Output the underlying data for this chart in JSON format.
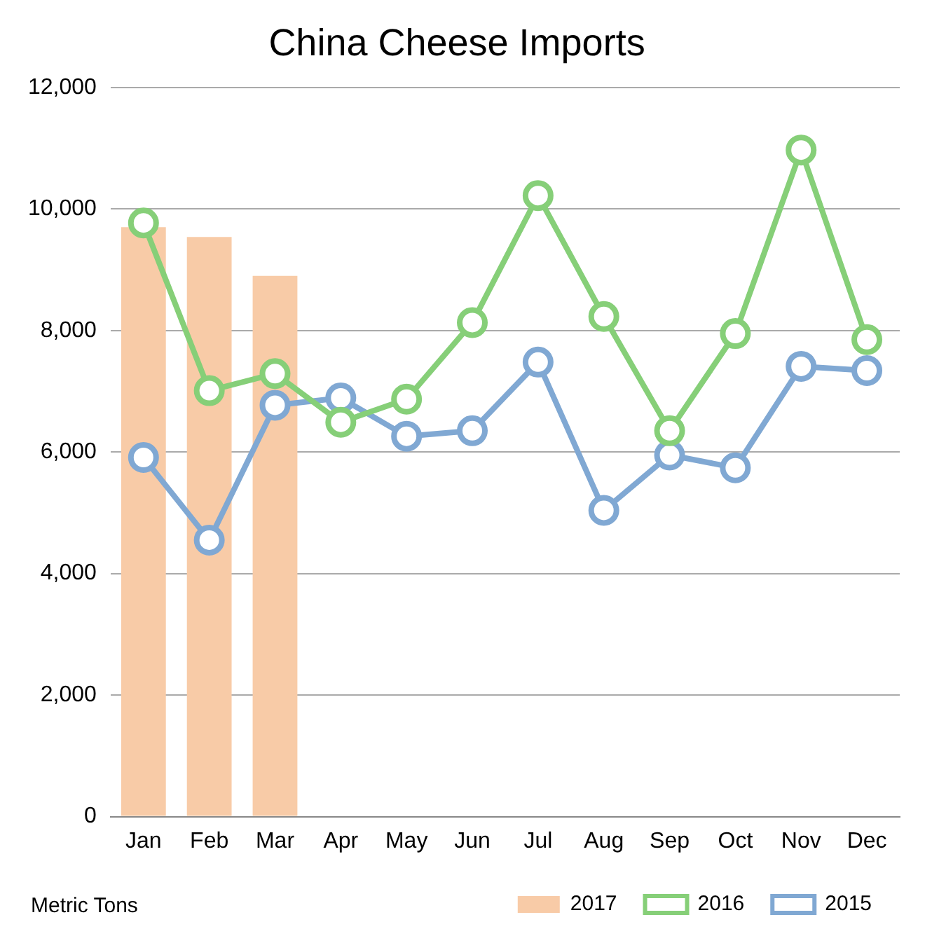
{
  "chart_data": {
    "type": "line",
    "title": "China Cheese Imports",
    "categories": [
      "Jan",
      "Feb",
      "Mar",
      "Apr",
      "May",
      "Jun",
      "Jul",
      "Aug",
      "Sep",
      "Oct",
      "Nov",
      "Dec"
    ],
    "series": [
      {
        "name": "2017",
        "type": "bar",
        "color": "#f8cba7",
        "values": [
          9700,
          9540,
          8900,
          null,
          null,
          null,
          null,
          null,
          null,
          null,
          null,
          null
        ]
      },
      {
        "name": "2016",
        "color": "#86cf78",
        "values": [
          9770,
          7010,
          7290,
          6490,
          6870,
          8130,
          10220,
          8230,
          6350,
          7950,
          10970,
          7850
        ]
      },
      {
        "name": "2015",
        "color": "#80a8d3",
        "values": [
          5910,
          4550,
          6770,
          6890,
          6260,
          6350,
          7480,
          5040,
          5950,
          5740,
          7410,
          7340
        ]
      }
    ],
    "ylim": [
      0,
      12000
    ],
    "yticks": [
      0,
      {
        "value": 2000,
        "label": "2,000"
      },
      {
        "value": 4000,
        "label": "4,000"
      },
      {
        "value": 6000,
        "label": "6,000"
      },
      {
        "value": 8000,
        "label": "8,000"
      },
      {
        "value": 10000,
        "label": "10,000"
      },
      {
        "value": 12000,
        "label": "12,000"
      }
    ],
    "grid": "y",
    "legend": "bottom",
    "marker": "circle",
    "annotations": [
      "Metric Tons"
    ]
  }
}
